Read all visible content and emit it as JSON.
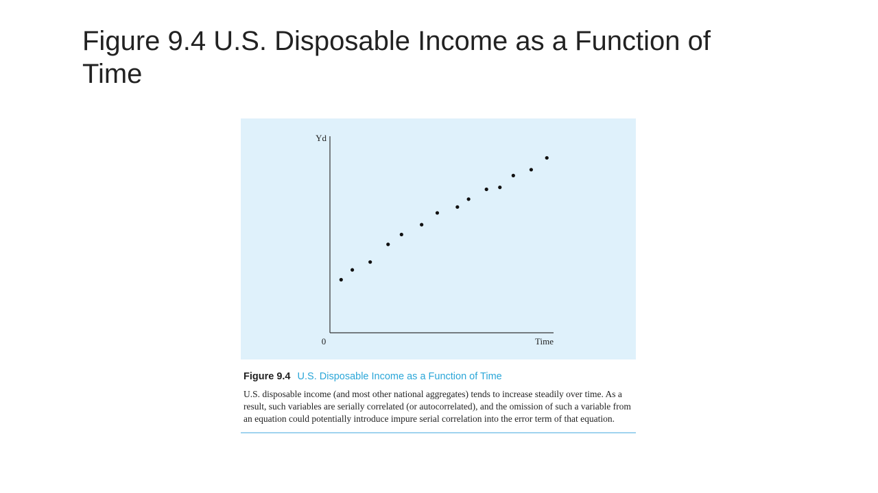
{
  "slide": {
    "title": "Figure 9.4 U.S. Disposable Income as a Function of Time"
  },
  "figure": {
    "number": "Figure 9.4",
    "caption_title": "U.S. Disposable Income as a Function of Time",
    "caption_body": "U.S. disposable income (and most other national aggregates) tends to increase steadily over time. As a result, such variables are serially correlated (or autocorrelated), and the omission of such a variable from an equation could potentially introduce impure serial correlation into the error term of that equation.",
    "panel_color": "#dff1fb",
    "accent_color": "#2aa6d8"
  },
  "chart_data": {
    "type": "scatter",
    "title": "",
    "xlabel": "Time",
    "ylabel": "Yd",
    "origin_label": "0",
    "xlim": [
      0,
      100
    ],
    "ylim": [
      0,
      100
    ],
    "grid": false,
    "x": [
      5,
      10,
      18,
      26,
      32,
      41,
      48,
      57,
      62,
      70,
      76,
      82,
      90,
      97
    ],
    "y": [
      27,
      32,
      36,
      45,
      50,
      55,
      61,
      64,
      68,
      73,
      74,
      80,
      83,
      89
    ]
  }
}
